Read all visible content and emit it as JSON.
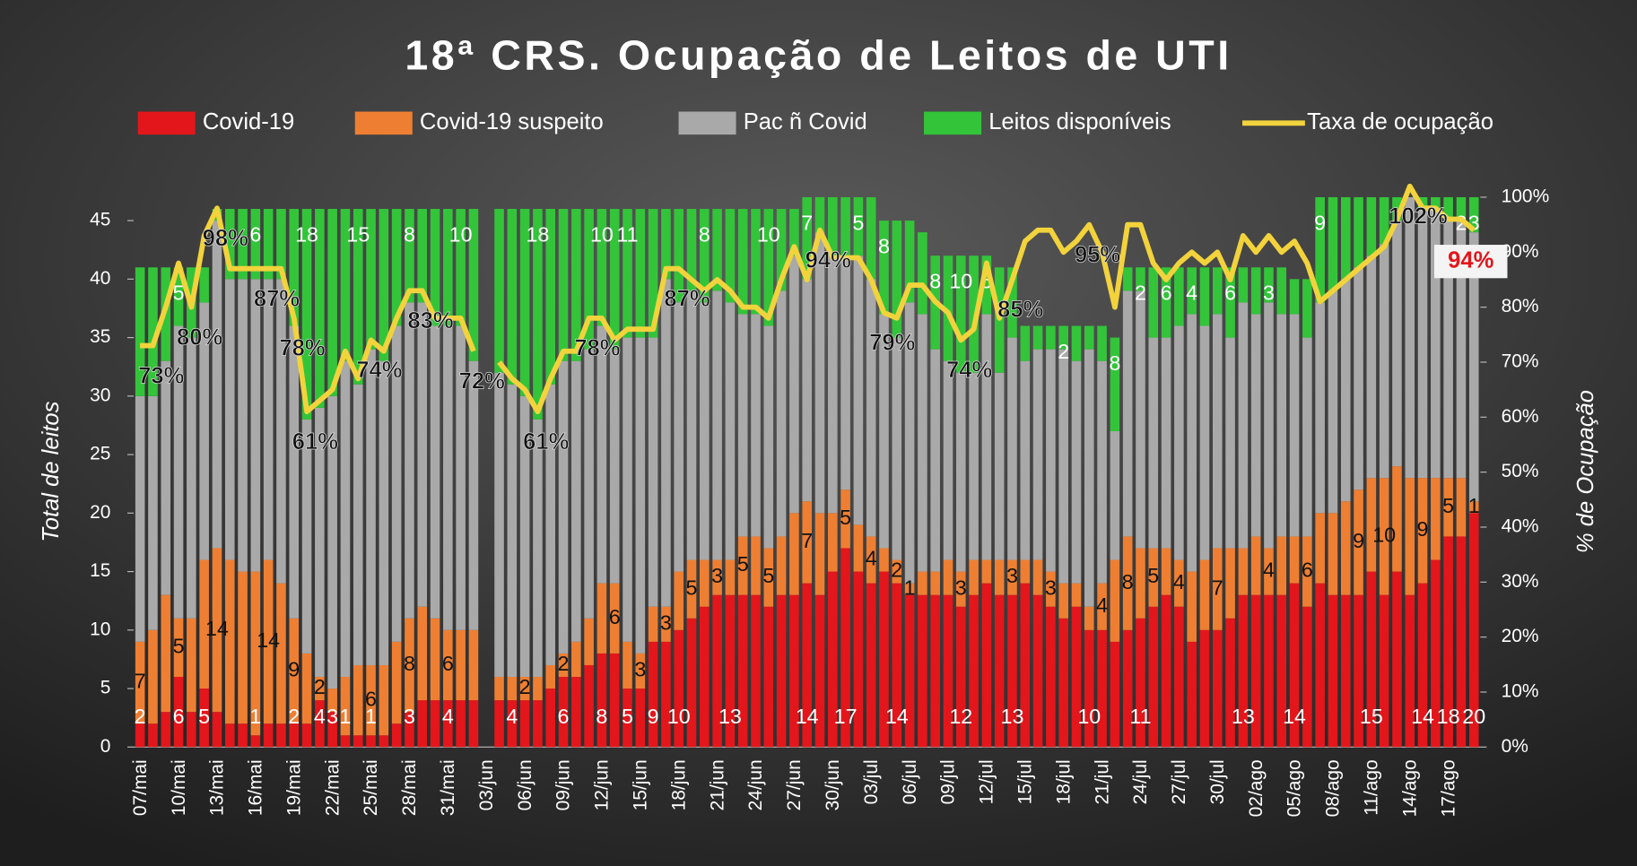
{
  "chart_data": {
    "type": "bar",
    "stacked": true,
    "title": "18ª CRS. Ocupação de Leitos de UTI",
    "y_label": "Total de leitos",
    "y2_label": "% de Ocupação",
    "ylim": [
      0,
      47
    ],
    "yticks": [
      0,
      5,
      10,
      15,
      20,
      25,
      30,
      35,
      40,
      45
    ],
    "y2lim": [
      0,
      100
    ],
    "y2ticks": [
      {
        "value": 0,
        "label": "0%"
      },
      {
        "value": 10,
        "label": "10%"
      },
      {
        "value": 20,
        "label": "20%"
      },
      {
        "value": 30,
        "label": "30%"
      },
      {
        "value": 40,
        "label": "40%"
      },
      {
        "value": 50,
        "label": "50%"
      },
      {
        "value": 60,
        "label": "60%"
      },
      {
        "value": 70,
        "label": "70%"
      },
      {
        "value": 80,
        "label": "80%"
      },
      {
        "value": 90,
        "label": "90%"
      },
      {
        "value": 100,
        "label": "100%"
      }
    ],
    "legend": "top",
    "categories": [
      "07/mai",
      null,
      null,
      "10/mai",
      null,
      null,
      "13/mai",
      null,
      null,
      "16/mai",
      null,
      null,
      "19/mai",
      null,
      null,
      "22/mai",
      null,
      null,
      "25/mai",
      null,
      null,
      "28/mai",
      null,
      null,
      "31/mai",
      null,
      null,
      "03/jun",
      null,
      null,
      "06/jun",
      null,
      null,
      "09/jun",
      null,
      null,
      "12/jun",
      null,
      null,
      "15/jun",
      null,
      null,
      "18/jun",
      null,
      null,
      "21/jun",
      null,
      null,
      "24/jun",
      null,
      null,
      "27/jun",
      null,
      null,
      "30/jun",
      null,
      null,
      "03/jul",
      null,
      null,
      "06/jul",
      null,
      null,
      "09/jul",
      null,
      null,
      "12/jul",
      null,
      null,
      "15/jul",
      null,
      null,
      "18/jul",
      null,
      null,
      "21/jul",
      null,
      null,
      "24/jul",
      null,
      null,
      "27/jul",
      null,
      null,
      "30/jul",
      null,
      null,
      "02/ago",
      null,
      null,
      "05/ago",
      null,
      null,
      "08/ago",
      null,
      null,
      "11/ago",
      null,
      null,
      "14/ago",
      null,
      null,
      "17/ago",
      null,
      null
    ],
    "series": [
      {
        "name": "Covid-19",
        "color": "#e3161b",
        "values": [
          2,
          2,
          3,
          6,
          3,
          5,
          3,
          2,
          2,
          1,
          2,
          2,
          2,
          2,
          4,
          3,
          1,
          1,
          1,
          1,
          2,
          3,
          4,
          4,
          4,
          4,
          4,
          null,
          4,
          4,
          4,
          4,
          5,
          6,
          6,
          7,
          8,
          8,
          5,
          5,
          9,
          9,
          10,
          11,
          12,
          13,
          13,
          13,
          13,
          12,
          13,
          13,
          14,
          13,
          15,
          17,
          15,
          14,
          15,
          14,
          13,
          13,
          13,
          13,
          12,
          13,
          14,
          13,
          13,
          14,
          13,
          12,
          11,
          12,
          10,
          10,
          9,
          10,
          11,
          12,
          13,
          12,
          9,
          10,
          10,
          11,
          13,
          13,
          13,
          13,
          14,
          12,
          14,
          13,
          13,
          13,
          15,
          13,
          15,
          13,
          14,
          16,
          18,
          18,
          20
        ],
        "value_labels": [
          "2",
          null,
          null,
          "6",
          null,
          "5",
          null,
          null,
          null,
          "1",
          null,
          null,
          "2",
          null,
          "4",
          "3",
          "1",
          null,
          "1",
          null,
          null,
          "3",
          null,
          null,
          "4",
          null,
          null,
          null,
          null,
          "4",
          null,
          null,
          null,
          "6",
          null,
          null,
          "8",
          null,
          "5",
          null,
          "9",
          null,
          "10",
          null,
          null,
          null,
          "13",
          null,
          null,
          null,
          null,
          null,
          "14",
          null,
          null,
          "17",
          null,
          null,
          null,
          "14",
          null,
          null,
          null,
          null,
          "12",
          null,
          null,
          null,
          "13",
          null,
          null,
          null,
          null,
          null,
          "10",
          null,
          null,
          null,
          "11",
          null,
          null,
          null,
          null,
          null,
          null,
          null,
          "13",
          null,
          null,
          null,
          "14",
          null,
          null,
          null,
          null,
          null,
          "15",
          null,
          null,
          null,
          "14",
          null,
          "18",
          null,
          "20"
        ]
      },
      {
        "name": "Covid-19 suspeito",
        "color": "#ee7f32",
        "values": [
          7,
          8,
          10,
          5,
          8,
          11,
          14,
          14,
          13,
          14,
          14,
          12,
          9,
          6,
          2,
          2,
          5,
          6,
          6,
          6,
          7,
          8,
          8,
          7,
          6,
          6,
          6,
          null,
          2,
          2,
          2,
          2,
          2,
          2,
          3,
          4,
          6,
          6,
          4,
          3,
          3,
          3,
          5,
          5,
          4,
          3,
          3,
          5,
          5,
          5,
          5,
          7,
          7,
          7,
          5,
          5,
          4,
          4,
          2,
          2,
          1,
          2,
          2,
          3,
          3,
          3,
          2,
          3,
          3,
          2,
          3,
          3,
          3,
          2,
          2,
          4,
          7,
          8,
          6,
          5,
          4,
          4,
          6,
          6,
          7,
          6,
          4,
          5,
          4,
          5,
          4,
          6,
          6,
          7,
          8,
          9,
          8,
          10,
          9,
          10,
          9,
          7,
          5,
          5,
          1
        ],
        "value_labels": [
          "7",
          null,
          null,
          "5",
          null,
          null,
          "14",
          null,
          null,
          null,
          "14",
          null,
          "9",
          null,
          "2",
          null,
          null,
          null,
          "6",
          null,
          null,
          "8",
          null,
          null,
          "6",
          null,
          null,
          null,
          null,
          null,
          "2",
          null,
          null,
          "2",
          null,
          null,
          null,
          "6",
          null,
          "3",
          null,
          "3",
          null,
          "5",
          null,
          "3",
          null,
          "5",
          null,
          "5",
          null,
          null,
          "7",
          null,
          null,
          "5",
          null,
          "4",
          null,
          "2",
          "1",
          null,
          null,
          null,
          "3",
          null,
          null,
          null,
          "3",
          null,
          null,
          "3",
          null,
          null,
          null,
          "4",
          null,
          "8",
          null,
          "5",
          null,
          "4",
          null,
          null,
          "7",
          null,
          null,
          null,
          "4",
          null,
          null,
          "6",
          null,
          null,
          null,
          "9",
          null,
          "10",
          null,
          null,
          "9",
          null,
          "5",
          null,
          "1"
        ]
      },
      {
        "name": "Pac ñ Covid",
        "color": "#a9a9a9",
        "values": [
          21,
          20,
          20,
          25,
          24,
          22,
          28,
          24,
          25,
          25,
          24,
          26,
          25,
          20,
          23,
          25,
          27,
          24,
          27,
          26,
          27,
          27,
          26,
          25,
          26,
          26,
          23,
          null,
          26,
          25,
          24,
          22,
          24,
          25,
          24,
          23,
          22,
          20,
          26,
          27,
          23,
          28,
          23,
          23,
          22,
          23,
          22,
          19,
          19,
          19,
          21,
          22,
          19,
          24,
          22,
          20,
          23,
          22,
          20,
          19,
          24,
          22,
          19,
          17,
          17,
          16,
          21,
          16,
          19,
          17,
          18,
          19,
          20,
          19,
          22,
          19,
          11,
          21,
          22,
          18,
          18,
          20,
          22,
          20,
          20,
          18,
          21,
          19,
          21,
          19,
          19,
          17,
          18,
          19,
          19,
          19,
          19,
          20,
          21,
          24,
          23,
          23,
          22,
          22,
          23
        ]
      },
      {
        "name": "Leitos disponíveis",
        "color": "#33c43a",
        "values": [
          11,
          11,
          8,
          5,
          6,
          3,
          1,
          6,
          6,
          6,
          6,
          6,
          10,
          18,
          17,
          16,
          13,
          15,
          12,
          13,
          10,
          8,
          8,
          10,
          10,
          10,
          13,
          null,
          14,
          15,
          16,
          18,
          15,
          13,
          13,
          12,
          10,
          12,
          11,
          11,
          11,
          6,
          8,
          7,
          8,
          7,
          8,
          9,
          9,
          10,
          7,
          4,
          7,
          3,
          5,
          5,
          5,
          7,
          8,
          10,
          7,
          7,
          8,
          9,
          10,
          10,
          5,
          9,
          6,
          3,
          2,
          2,
          2,
          3,
          2,
          3,
          8,
          2,
          2,
          6,
          6,
          5,
          4,
          5,
          4,
          6,
          3,
          4,
          3,
          4,
          3,
          5,
          9,
          8,
          7,
          6,
          5,
          4,
          2,
          0,
          1,
          1,
          2,
          2,
          3
        ],
        "value_labels": [
          null,
          null,
          null,
          "5",
          null,
          null,
          null,
          null,
          null,
          "6",
          null,
          null,
          null,
          "18",
          null,
          null,
          null,
          "15",
          null,
          null,
          null,
          "8",
          null,
          null,
          null,
          "10",
          null,
          null,
          null,
          null,
          null,
          "18",
          null,
          null,
          null,
          null,
          "10",
          null,
          "11",
          null,
          null,
          null,
          null,
          null,
          "8",
          null,
          null,
          null,
          null,
          "10",
          null,
          null,
          "7",
          null,
          null,
          null,
          "5",
          null,
          "8",
          null,
          null,
          null,
          "8",
          null,
          "10",
          null,
          "5",
          null,
          null,
          null,
          null,
          null,
          "2",
          null,
          null,
          null,
          "8",
          null,
          "2",
          null,
          "6",
          null,
          "4",
          null,
          null,
          "6",
          null,
          null,
          "3",
          null,
          null,
          null,
          "9",
          null,
          null,
          null,
          null,
          null,
          null,
          null,
          null,
          null,
          null,
          "2",
          "3"
        ]
      },
      {
        "name": "Taxa de ocupação",
        "type": "line",
        "axis": "y2",
        "color": "#f2d33c",
        "values": [
          73,
          73,
          80,
          88,
          80,
          93,
          98,
          87,
          87,
          87,
          87,
          87,
          78,
          61,
          63,
          65,
          72,
          67,
          74,
          72,
          78,
          83,
          83,
          78,
          78,
          78,
          72,
          null,
          70,
          67,
          65,
          61,
          67,
          72,
          72,
          78,
          78,
          74,
          76,
          76,
          76,
          87,
          87,
          85,
          83,
          85,
          83,
          80,
          80,
          78,
          85,
          91,
          85,
          94,
          89,
          89,
          89,
          85,
          79,
          78,
          84,
          84,
          81,
          79,
          74,
          76,
          88,
          78,
          85,
          92,
          94,
          94,
          90,
          92,
          95,
          90,
          80,
          95,
          95,
          88,
          85,
          88,
          90,
          88,
          90,
          85,
          93,
          90,
          93,
          90,
          92,
          88,
          81,
          83,
          85,
          87,
          89,
          91,
          96,
          102,
          98,
          98,
          96,
          96,
          94
        ],
        "value_labels": [
          null,
          "73%",
          null,
          null,
          "80%",
          null,
          "98%",
          null,
          null,
          null,
          "87%",
          null,
          "78%",
          "61%",
          null,
          null,
          null,
          null,
          "74%",
          null,
          null,
          null,
          "83%",
          null,
          null,
          null,
          "72%",
          null,
          null,
          null,
          null,
          "61%",
          null,
          null,
          null,
          "78%",
          null,
          null,
          null,
          null,
          null,
          null,
          "87%",
          null,
          null,
          null,
          null,
          null,
          null,
          null,
          null,
          null,
          null,
          "94%",
          null,
          null,
          null,
          null,
          "79%",
          null,
          null,
          null,
          null,
          null,
          "74%",
          null,
          null,
          null,
          "85%",
          null,
          null,
          null,
          null,
          null,
          "95%",
          null,
          null,
          null,
          null,
          null,
          null,
          null,
          null,
          null,
          null,
          null,
          null,
          null,
          null,
          null,
          null,
          null,
          null,
          null,
          null,
          null,
          null,
          null,
          null,
          "102%",
          null,
          null,
          null,
          null,
          "94%"
        ]
      }
    ]
  }
}
